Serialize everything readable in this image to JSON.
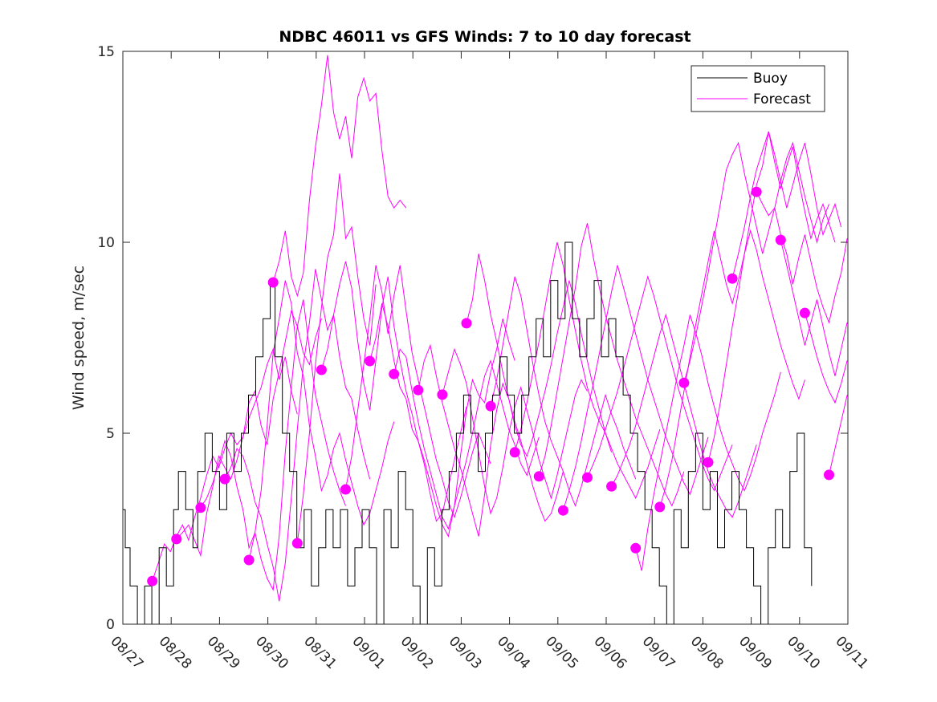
{
  "chart_data": {
    "type": "line",
    "title": "NDBC 46011 vs GFS Winds: 7 to 10 day forecast",
    "xlabel": "",
    "ylabel": "Wind speed, m/sec",
    "ylim": [
      0,
      15
    ],
    "xlim_days": [
      0,
      15
    ],
    "x_unit": "days since 08/27",
    "x_tick_labels": [
      "08/27",
      "08/28",
      "08/29",
      "08/30",
      "08/31",
      "09/01",
      "09/02",
      "09/03",
      "09/04",
      "09/05",
      "09/06",
      "09/07",
      "09/08",
      "09/09",
      "09/10",
      "09/11"
    ],
    "y_ticks": [
      0,
      5,
      10,
      15
    ],
    "grid": false,
    "legend": {
      "placement": "top-right",
      "entries": [
        {
          "label": "Buoy",
          "color": "#000000"
        },
        {
          "label": "Forecast",
          "color": "#ff00ff"
        }
      ]
    },
    "series": [
      {
        "name": "Buoy",
        "color": "#000000",
        "style": "step",
        "x": [
          0.0,
          0.05,
          0.15,
          0.3,
          0.45,
          0.6,
          0.75,
          0.9,
          1.05,
          1.15,
          1.3,
          1.45,
          1.55,
          1.7,
          1.85,
          2.0,
          2.15,
          2.3,
          2.45,
          2.6,
          2.75,
          2.9,
          3.05,
          3.15,
          3.3,
          3.45,
          3.6,
          3.75,
          3.9,
          4.05,
          4.2,
          4.35,
          4.5,
          4.65,
          4.8,
          4.95,
          5.1,
          5.25,
          5.4,
          5.55,
          5.7,
          5.85,
          6.0,
          6.15,
          6.3,
          6.45,
          6.6,
          6.75,
          6.9,
          7.05,
          7.2,
          7.35,
          7.5,
          7.65,
          7.8,
          7.95,
          8.1,
          8.25,
          8.4,
          8.55,
          8.7,
          8.85,
          9.0,
          9.15,
          9.3,
          9.45,
          9.6,
          9.75,
          9.9,
          10.05,
          10.2,
          10.35,
          10.5,
          10.65,
          10.8,
          10.95,
          11.1,
          11.25,
          11.4,
          11.55,
          11.7,
          11.85,
          12.0,
          12.15,
          12.3,
          12.45,
          12.6,
          12.75,
          12.9,
          13.05,
          13.2,
          13.35,
          13.5,
          13.65,
          13.8,
          13.95,
          14.1,
          14.25
        ],
        "values": [
          3,
          2,
          1,
          0,
          1,
          0,
          2,
          1,
          3,
          4,
          3,
          2,
          4,
          5,
          4,
          3,
          5,
          4,
          5,
          6,
          7,
          8,
          9,
          7,
          5,
          4,
          2,
          3,
          1,
          2,
          3,
          2,
          3,
          1,
          2,
          3,
          2,
          0,
          3,
          2,
          4,
          3,
          1,
          0,
          2,
          1,
          3,
          4,
          5,
          6,
          5,
          4,
          5,
          6,
          7,
          6,
          5,
          6,
          7,
          8,
          7,
          9,
          8,
          10,
          8,
          7,
          8,
          9,
          7,
          8,
          7,
          6,
          5,
          4,
          3,
          2,
          1,
          0,
          3,
          2,
          4,
          5,
          3,
          4,
          2,
          3,
          4,
          3,
          2,
          1,
          0,
          2,
          3,
          2,
          4,
          5,
          2,
          1
        ]
      }
    ],
    "forecast_runs": [
      {
        "start_day": 0.61,
        "values": [
          1.13,
          1.6,
          2.1,
          1.9,
          2.3,
          2.6,
          2.2,
          2.8,
          3.3,
          3.9,
          4.4,
          4.1,
          4.6,
          5.0,
          4.7,
          4.9,
          5.4,
          5.8,
          6.2,
          6.8,
          7.2,
          6.4,
          7.0,
          6.1,
          5.5
        ]
      },
      {
        "start_day": 1.11,
        "values": [
          2.23,
          2.4,
          2.6,
          2.2,
          1.8,
          2.9,
          3.6,
          4.4,
          4.1,
          3.8,
          4.3,
          4.9,
          5.8,
          6.1,
          5.2,
          4.7,
          5.9,
          6.6,
          7.4,
          8.2,
          7.8,
          7.1,
          6.8,
          7.5,
          8.0
        ]
      },
      {
        "start_day": 1.61,
        "values": [
          3.05,
          3.3,
          3.7,
          4.2,
          4.8,
          4.4,
          3.6,
          3.0,
          2.0,
          2.4,
          1.7,
          1.2,
          0.9,
          2.3,
          4.5,
          6.2,
          7.8,
          8.5,
          7.2,
          6.0,
          5.3,
          4.6,
          4.0,
          3.5,
          3.1
        ]
      },
      {
        "start_day": 2.11,
        "values": [
          3.8,
          4.1,
          4.6,
          4.4,
          3.9,
          3.2,
          2.8,
          2.1,
          1.5,
          0.6,
          1.6,
          3.3,
          5.1,
          6.8,
          7.9,
          9.3,
          8.5,
          7.7,
          8.1,
          7.0,
          6.2,
          5.9,
          5.1,
          4.4,
          3.8
        ]
      },
      {
        "start_day": 2.61,
        "values": [
          1.68,
          2.4,
          3.5,
          5.2,
          7.1,
          8.0,
          9.0,
          8.4,
          7.1,
          6.5,
          5.2,
          4.4,
          3.5,
          3.9,
          4.6,
          5.0,
          4.3,
          3.7,
          3.1,
          2.6,
          2.9,
          3.5,
          4.1,
          4.8,
          5.3
        ]
      },
      {
        "start_day": 3.11,
        "values": [
          8.95,
          9.5,
          10.3,
          9.1,
          8.6,
          9.2,
          11.1,
          12.5,
          13.6,
          14.9,
          13.4,
          12.7,
          13.3,
          12.2,
          13.8,
          14.3,
          13.7,
          13.9,
          12.4,
          11.2,
          10.9,
          11.1,
          10.9
        ]
      },
      {
        "start_day": 3.61,
        "values": [
          2.12,
          3.4,
          5.0,
          6.8,
          8.3,
          9.6,
          10.2,
          11.8,
          10.1,
          10.4,
          9.1,
          8.0,
          7.3,
          8.9
        ]
      },
      {
        "start_day": 4.11,
        "values": [
          6.66,
          7.2,
          8.1,
          8.9,
          9.5,
          8.8,
          7.4,
          6.3,
          5.6,
          6.9,
          8.3,
          9.1,
          7.8,
          6.9,
          6.1,
          5.5,
          4.8,
          4.2,
          3.4,
          2.7,
          2.9,
          3.6,
          4.3,
          5.0,
          5.7
        ]
      },
      {
        "start_day": 4.61,
        "values": [
          3.53,
          4.4,
          5.6,
          6.8,
          8.0,
          9.4,
          8.7,
          7.6,
          8.6,
          9.4,
          8.2,
          7.1,
          6.4,
          5.7,
          5.0,
          4.3,
          3.8,
          3.2,
          2.8,
          3.3,
          3.9,
          4.5,
          5.0,
          4.6,
          4.2
        ]
      },
      {
        "start_day": 5.11,
        "values": [
          6.89,
          7.5,
          8.4,
          7.8,
          6.9,
          6.2,
          5.9,
          5.1,
          4.8,
          4.3,
          3.7,
          3.1,
          2.6,
          2.3,
          3.1,
          4.4,
          5.6,
          6.4,
          6.0,
          5.8,
          6.6,
          7.2,
          8.0,
          7.4,
          6.9
        ]
      },
      {
        "start_day": 5.61,
        "values": [
          6.55,
          7.2,
          7.0,
          6.1,
          5.3,
          4.6,
          4.0,
          3.4,
          2.8,
          2.5,
          3.1,
          3.7,
          4.3,
          5.0,
          5.8,
          6.5,
          6.9,
          6.3,
          5.7,
          5.1,
          4.7,
          4.2,
          3.9,
          4.4,
          4.9
        ]
      },
      {
        "start_day": 6.11,
        "values": [
          6.13,
          6.9,
          7.3,
          6.5,
          5.8,
          5.2,
          4.6,
          4.1,
          3.5,
          2.9,
          2.3,
          3.4,
          4.7,
          5.6,
          6.3,
          5.9,
          5.3,
          4.8,
          4.2,
          3.6,
          3.1,
          2.7,
          2.9,
          3.4,
          4.0
        ]
      },
      {
        "start_day": 6.61,
        "values": [
          6.01,
          6.6,
          7.2,
          6.8,
          6.3,
          5.4,
          4.5,
          3.6,
          2.9,
          3.3,
          4.1,
          5.0,
          5.7,
          6.2,
          5.6,
          5.0,
          4.3,
          3.8,
          3.3,
          3.9,
          4.6,
          5.3,
          6.0,
          6.4,
          6.1
        ]
      },
      {
        "start_day": 7.11,
        "values": [
          7.88,
          8.5,
          9.7,
          9.0,
          8.1,
          7.4,
          6.6,
          5.9,
          5.2,
          4.7,
          4.4,
          4.9,
          5.5,
          6.1,
          6.8,
          7.6,
          8.3,
          9.0,
          8.4,
          7.6,
          6.9,
          6.2,
          5.6,
          5.0,
          4.5
        ]
      },
      {
        "start_day": 7.61,
        "values": [
          5.71,
          6.4,
          7.3,
          8.2,
          9.1,
          8.6,
          7.7,
          6.8,
          6.0,
          5.3,
          4.8,
          4.4,
          4.0,
          3.5,
          3.1,
          3.6,
          4.2,
          4.8,
          5.4,
          6.0,
          5.5,
          5.1,
          4.6,
          4.2,
          3.8
        ]
      },
      {
        "start_day": 8.11,
        "values": [
          4.5,
          5.1,
          5.8,
          6.6,
          7.4,
          8.3,
          9.2,
          10.0,
          9.4,
          8.5,
          7.7,
          6.9,
          6.2,
          5.7,
          5.3,
          5.0,
          4.6,
          4.2,
          3.9,
          3.6,
          3.3,
          3.7,
          4.1,
          4.6,
          5.1
        ]
      },
      {
        "start_day": 8.61,
        "values": [
          3.87,
          4.4,
          5.2,
          6.1,
          7.0,
          7.9,
          8.8,
          9.9,
          10.5,
          9.6,
          8.8,
          8.1,
          7.5,
          6.9,
          6.4,
          5.9,
          5.4,
          5.0,
          4.6,
          4.2,
          3.8,
          3.4,
          3.1,
          3.5,
          4.0
        ]
      },
      {
        "start_day": 9.11,
        "values": [
          2.98,
          3.5,
          4.1,
          4.8,
          5.6,
          6.3,
          7.1,
          7.9,
          8.7,
          9.4,
          8.8,
          8.2,
          7.6,
          7.0,
          6.4,
          5.9,
          5.4,
          4.9,
          4.5,
          4.1,
          3.7,
          3.4,
          3.9,
          4.4,
          4.9
        ]
      },
      {
        "start_day": 9.61,
        "values": [
          3.84,
          4.2,
          4.6,
          5.1,
          5.6,
          6.1,
          6.7,
          7.3,
          7.9,
          8.5,
          9.1,
          8.6,
          8.0,
          7.4,
          6.8,
          6.2,
          5.7,
          5.2,
          4.7,
          4.2,
          3.8,
          3.5,
          3.9,
          4.3,
          4.7
        ]
      },
      {
        "start_day": 10.11,
        "values": [
          3.61,
          3.9,
          4.3,
          4.7,
          5.2,
          5.8,
          6.4,
          7.0,
          7.6,
          8.1,
          7.5,
          6.9,
          6.3,
          5.7,
          5.1,
          4.5,
          4.0,
          3.6,
          3.3,
          3.0,
          2.8,
          3.2,
          3.7,
          4.2,
          4.7
        ]
      },
      {
        "start_day": 10.61,
        "values": [
          1.99,
          1.4,
          2.5,
          3.4,
          4.2,
          5.0,
          5.8,
          6.6,
          7.3,
          8.1,
          7.6,
          7.0,
          6.3,
          5.7,
          5.1,
          4.6,
          4.2,
          3.8,
          3.5,
          3.9,
          4.4,
          5.0,
          5.5,
          6.0,
          6.6
        ]
      },
      {
        "start_day": 11.11,
        "values": [
          3.07,
          3.6,
          4.3,
          5.2,
          6.1,
          7.0,
          7.9,
          8.7,
          9.5,
          10.3,
          9.6,
          8.9,
          8.4,
          9.0,
          9.7,
          10.3,
          9.8,
          9.1,
          8.5,
          7.9,
          7.3,
          6.8,
          6.3,
          5.9,
          6.4
        ]
      },
      {
        "start_day": 11.61,
        "values": [
          6.32,
          6.9,
          7.6,
          8.4,
          9.2,
          10.1,
          11.0,
          11.9,
          12.3,
          12.6,
          11.8,
          11.1,
          10.4,
          9.7,
          10.3,
          10.9,
          11.6,
          12.2,
          12.6,
          11.9,
          11.2,
          10.6,
          10.0,
          10.6,
          11.0
        ]
      },
      {
        "start_day": 12.11,
        "values": [
          4.24,
          4.9,
          5.8,
          6.8,
          7.8,
          8.7,
          9.7,
          10.6,
          11.5,
          12.0,
          12.9,
          12.3,
          11.6,
          10.9,
          11.5,
          12.1,
          12.6,
          11.8,
          10.9,
          10.2,
          10.6,
          11.0,
          10.4
        ]
      },
      {
        "start_day": 12.61,
        "values": [
          9.05,
          9.7,
          10.4,
          11.2,
          11.9,
          12.4,
          12.9,
          12.1,
          11.4,
          12.0,
          12.5,
          11.6,
          10.8,
          10.1,
          10.6,
          11.0,
          10.5,
          10.0
        ]
      },
      {
        "start_day": 13.11,
        "values": [
          11.32,
          11.0,
          10.7,
          10.9,
          10.2,
          9.7,
          8.9,
          9.6,
          10.2,
          9.5,
          8.8,
          8.3,
          7.9,
          8.6,
          9.2,
          10.1,
          10.7,
          10.3
        ]
      },
      {
        "start_day": 13.61,
        "values": [
          10.06,
          9.4,
          8.7,
          8.0,
          7.3,
          7.9,
          8.5,
          7.8,
          7.1,
          6.5,
          7.2,
          7.9,
          8.5,
          8.0,
          7.4,
          6.9,
          7.6,
          8.1
        ]
      },
      {
        "start_day": 14.11,
        "values": [
          8.15,
          7.6,
          7.0,
          6.5,
          6.1,
          5.8,
          6.3,
          6.9,
          7.4,
          6.8
        ]
      },
      {
        "start_day": 14.61,
        "values": [
          3.91,
          4.6,
          5.3,
          6.0,
          6.8,
          7.6
        ]
      }
    ],
    "forecast_markers": {
      "name": "Forecast start points",
      "color": "#ff00ff",
      "x": [
        0.61,
        1.11,
        1.61,
        2.11,
        2.61,
        3.11,
        3.61,
        4.11,
        4.61,
        5.11,
        5.61,
        6.11,
        6.61,
        7.11,
        7.61,
        8.11,
        8.61,
        9.11,
        9.61,
        10.11,
        10.61,
        11.11,
        11.61,
        12.11,
        12.61,
        13.11,
        13.61,
        14.11,
        14.61
      ],
      "values": [
        1.13,
        2.23,
        3.05,
        3.8,
        1.68,
        8.95,
        2.12,
        6.66,
        3.53,
        6.89,
        6.55,
        6.13,
        6.01,
        7.88,
        5.71,
        4.5,
        3.87,
        2.98,
        3.84,
        3.61,
        1.99,
        3.07,
        6.32,
        4.24,
        9.05,
        11.32,
        10.06,
        8.15,
        3.91
      ]
    },
    "forecast_step_days": 0.125
  }
}
